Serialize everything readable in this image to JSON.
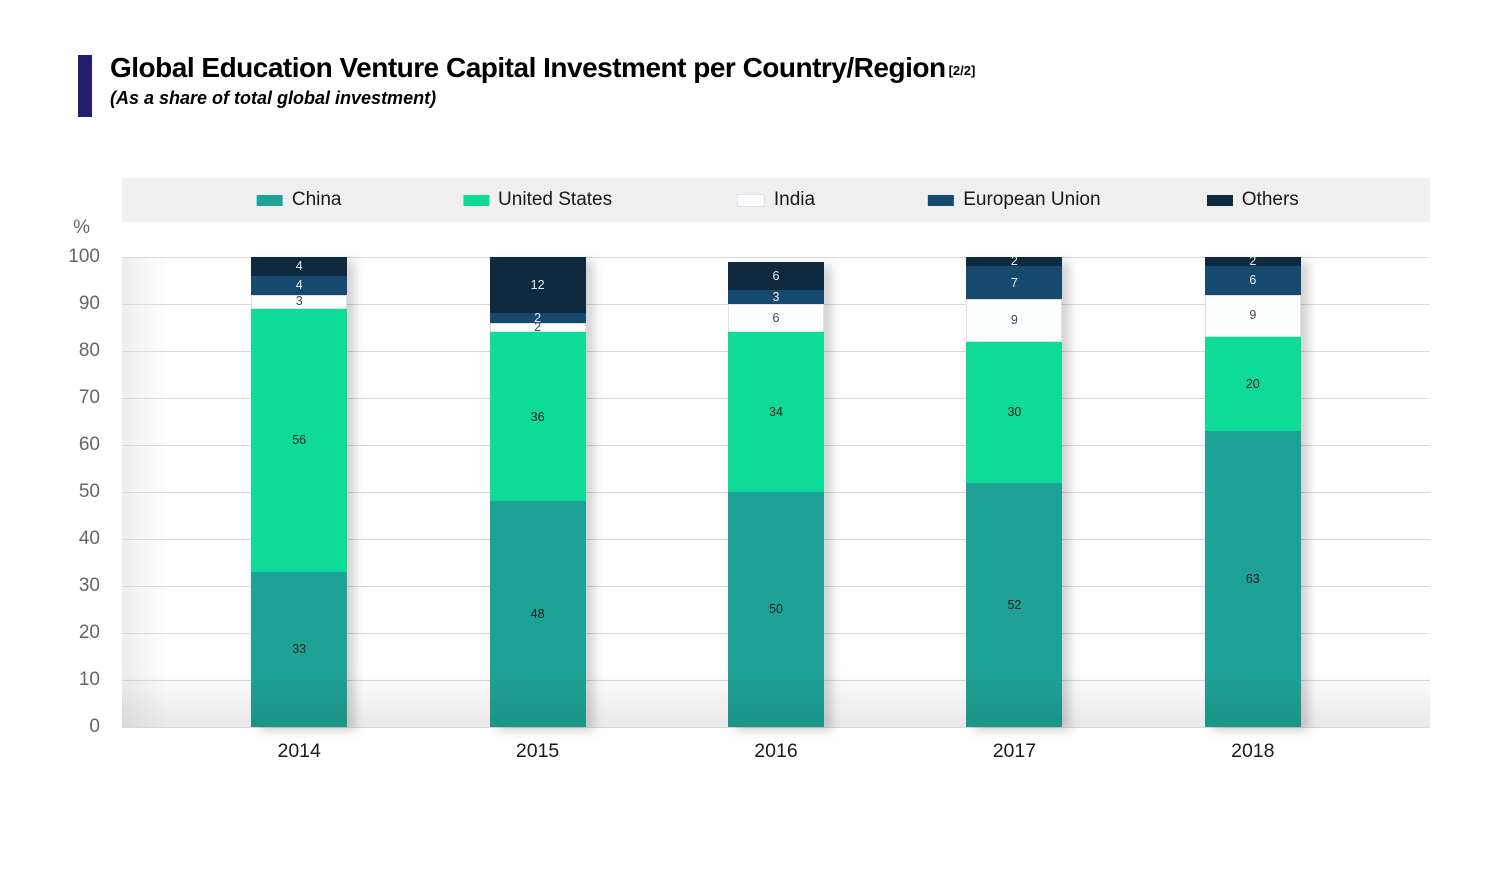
{
  "header": {
    "title": "Global Education Venture Capital Investment per Country/Region",
    "page_indicator": "[2/2]",
    "subtitle": "(As a share of total global investment)",
    "accent_color": "#221e72"
  },
  "chart_data": {
    "type": "bar",
    "stacked": true,
    "title": "Global Education Venture Capital Investment per Country/Region",
    "subtitle": "(As a share of total global investment)",
    "unit": "%",
    "categories": [
      "2014",
      "2015",
      "2016",
      "2017",
      "2018"
    ],
    "series": [
      {
        "name": "China",
        "color": "#1ea295",
        "label_color": "#1d1d1d",
        "border": "",
        "values": [
          33,
          48,
          50,
          52,
          63
        ]
      },
      {
        "name": "United States",
        "color": "#0fdb98",
        "label_color": "#1d1d1d",
        "border": "",
        "values": [
          56,
          36,
          34,
          30,
          20
        ]
      },
      {
        "name": "India",
        "color": "#fcfdfe",
        "label_color": "#474747",
        "border": "#dde1e4",
        "values": [
          3,
          2,
          6,
          9,
          9
        ]
      },
      {
        "name": "European Union",
        "color": "#16496e",
        "label_color": "#e9edef",
        "border": "",
        "values": [
          4,
          2,
          3,
          7,
          6
        ]
      },
      {
        "name": "Others",
        "color": "#0f2a3f",
        "label_color": "#e9edef",
        "border": "",
        "values": [
          4,
          12,
          6,
          2,
          2
        ]
      }
    ],
    "ylabel": "%",
    "ylim": [
      0,
      100
    ],
    "yticks": [
      0,
      10,
      20,
      30,
      40,
      50,
      60,
      70,
      80,
      90,
      100
    ],
    "grid": true,
    "legend_position": "top"
  },
  "layout_colors": {
    "legend_background": "#efeff0",
    "gridline": "#d8d8d8",
    "axis_text": "#666666"
  }
}
